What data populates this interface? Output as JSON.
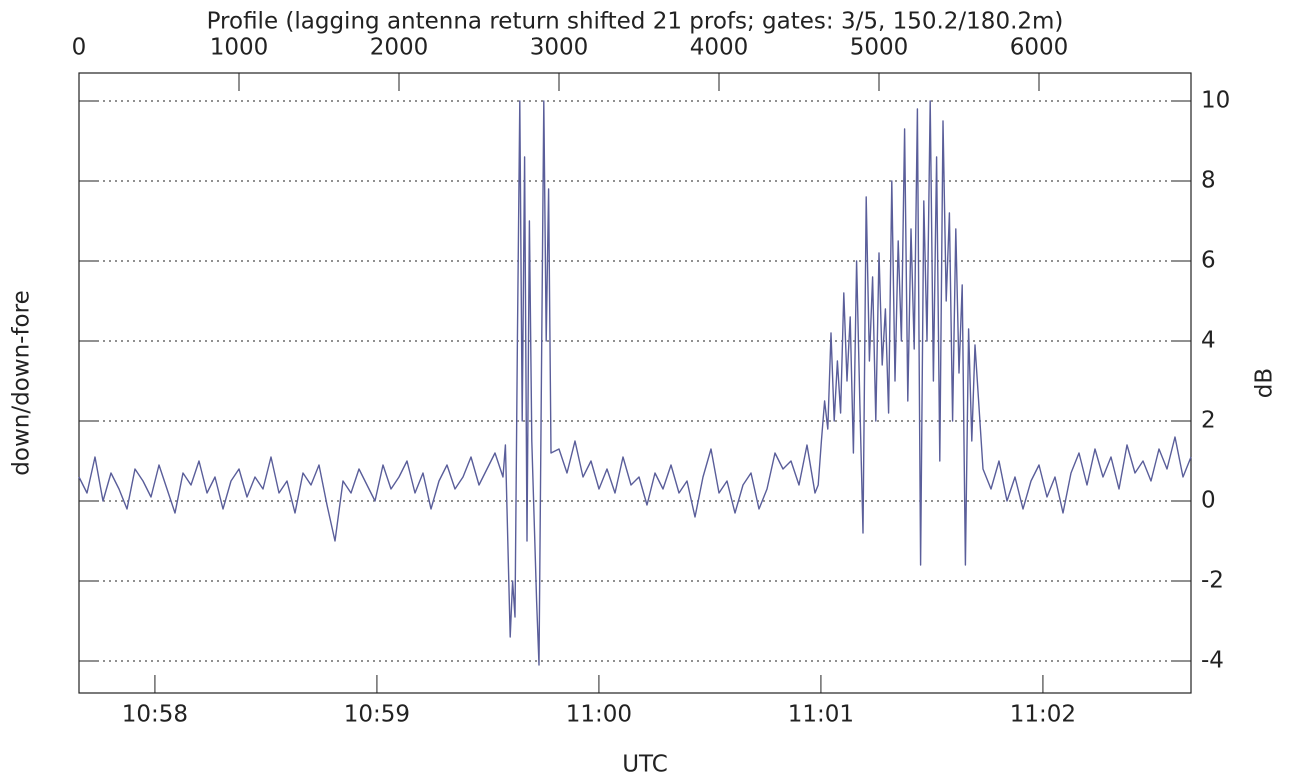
{
  "chart_data": {
    "type": "line",
    "title": "Profile (lagging antenna return shifted 21 profs; gates: 3/5, 150.2/180.2m)",
    "xlabel": "UTC",
    "ylabel": "down/down-fore",
    "y2label": "dB",
    "color": "#5a5e9a",
    "grid": true,
    "xlim": [
      0,
      6950
    ],
    "xticks": [
      0,
      1000,
      2000,
      3000,
      4000,
      5000,
      6000
    ],
    "x2lim": [
      657.658,
      662.667
    ],
    "x2ticks": [
      {
        "value": 658,
        "label": "10:58"
      },
      {
        "value": 659,
        "label": "10:59"
      },
      {
        "value": 660,
        "label": "11:00"
      },
      {
        "value": 661,
        "label": "11:01"
      },
      {
        "value": 662,
        "label": "11:02"
      }
    ],
    "ylim": [
      -4.8,
      10.7
    ],
    "yticks": [
      -4,
      -2,
      0,
      2,
      4,
      6,
      8,
      10
    ],
    "x": [
      0,
      50,
      100,
      150,
      200,
      250,
      300,
      350,
      400,
      450,
      500,
      550,
      600,
      650,
      700,
      750,
      800,
      850,
      900,
      950,
      1000,
      1050,
      1100,
      1150,
      1200,
      1250,
      1300,
      1350,
      1400,
      1450,
      1500,
      1550,
      1600,
      1650,
      1700,
      1750,
      1800,
      1850,
      1900,
      1950,
      2000,
      2050,
      2100,
      2150,
      2200,
      2250,
      2300,
      2350,
      2400,
      2450,
      2500,
      2550,
      2600,
      2650,
      2665,
      2680,
      2695,
      2710,
      2725,
      2740,
      2755,
      2770,
      2785,
      2800,
      2815,
      2830,
      2845,
      2860,
      2875,
      2890,
      2905,
      2920,
      2935,
      2950,
      3000,
      3050,
      3100,
      3150,
      3200,
      3250,
      3300,
      3350,
      3400,
      3450,
      3500,
      3550,
      3600,
      3650,
      3700,
      3750,
      3800,
      3850,
      3900,
      3950,
      4000,
      4050,
      4100,
      4150,
      4200,
      4250,
      4300,
      4350,
      4400,
      4450,
      4500,
      4550,
      4600,
      4620,
      4640,
      4660,
      4680,
      4700,
      4720,
      4740,
      4760,
      4780,
      4800,
      4820,
      4840,
      4860,
      4880,
      4900,
      4920,
      4940,
      4960,
      4980,
      5000,
      5020,
      5040,
      5060,
      5080,
      5100,
      5120,
      5140,
      5160,
      5180,
      5200,
      5220,
      5240,
      5260,
      5280,
      5300,
      5320,
      5340,
      5360,
      5380,
      5400,
      5420,
      5440,
      5460,
      5480,
      5500,
      5520,
      5540,
      5560,
      5580,
      5600,
      5650,
      5700,
      5750,
      5800,
      5850,
      5900,
      5950,
      6000,
      6050,
      6100,
      6150,
      6200,
      6250,
      6300,
      6350,
      6400,
      6450,
      6500,
      6550,
      6600,
      6650,
      6700,
      6750,
      6800,
      6850,
      6900,
      6950
    ],
    "values": [
      0.6,
      0.2,
      1.1,
      0.0,
      0.7,
      0.3,
      -0.2,
      0.8,
      0.5,
      0.1,
      0.9,
      0.3,
      -0.3,
      0.7,
      0.4,
      1.0,
      0.2,
      0.6,
      -0.2,
      0.5,
      0.8,
      0.1,
      0.6,
      0.3,
      1.1,
      0.2,
      0.5,
      -0.3,
      0.7,
      0.4,
      0.9,
      -0.1,
      -1.0,
      0.5,
      0.2,
      0.8,
      0.4,
      0.0,
      0.9,
      0.3,
      0.6,
      1.0,
      0.2,
      0.7,
      -0.2,
      0.5,
      0.9,
      0.3,
      0.6,
      1.1,
      0.4,
      0.8,
      1.2,
      0.6,
      1.4,
      -1.0,
      -3.4,
      -2.0,
      -2.9,
      4.0,
      10.0,
      2.0,
      8.6,
      -1.0,
      7.0,
      1.5,
      -0.5,
      -2.5,
      -4.1,
      3.0,
      10.0,
      4.0,
      7.8,
      1.2,
      1.3,
      0.7,
      1.5,
      0.6,
      1.0,
      0.3,
      0.8,
      0.2,
      1.1,
      0.4,
      0.6,
      -0.1,
      0.7,
      0.3,
      0.9,
      0.2,
      0.5,
      -0.4,
      0.6,
      1.3,
      0.2,
      0.5,
      -0.3,
      0.4,
      0.7,
      -0.2,
      0.3,
      1.2,
      0.8,
      1.0,
      0.4,
      1.4,
      0.2,
      0.4,
      1.5,
      2.5,
      1.8,
      4.2,
      2.0,
      3.5,
      2.2,
      5.2,
      3.0,
      4.6,
      1.2,
      6.0,
      2.5,
      -0.8,
      7.6,
      3.5,
      5.6,
      2.0,
      6.2,
      3.4,
      4.8,
      2.2,
      8.0,
      3.0,
      6.5,
      4.0,
      9.3,
      2.5,
      6.8,
      3.8,
      9.8,
      -1.6,
      7.5,
      4.0,
      10.0,
      3.0,
      8.6,
      1.0,
      9.5,
      5.0,
      7.2,
      2.0,
      6.8,
      3.2,
      5.4,
      -1.6,
      4.3,
      1.5,
      3.9,
      0.8,
      0.3,
      1.0,
      0.0,
      0.6,
      -0.2,
      0.5,
      0.9,
      0.1,
      0.6,
      -0.3,
      0.7,
      1.2,
      0.4,
      1.3,
      0.6,
      1.1,
      0.3,
      1.4,
      0.7,
      1.0,
      0.5,
      1.3,
      0.8,
      1.6,
      0.6,
      1.1
    ]
  }
}
